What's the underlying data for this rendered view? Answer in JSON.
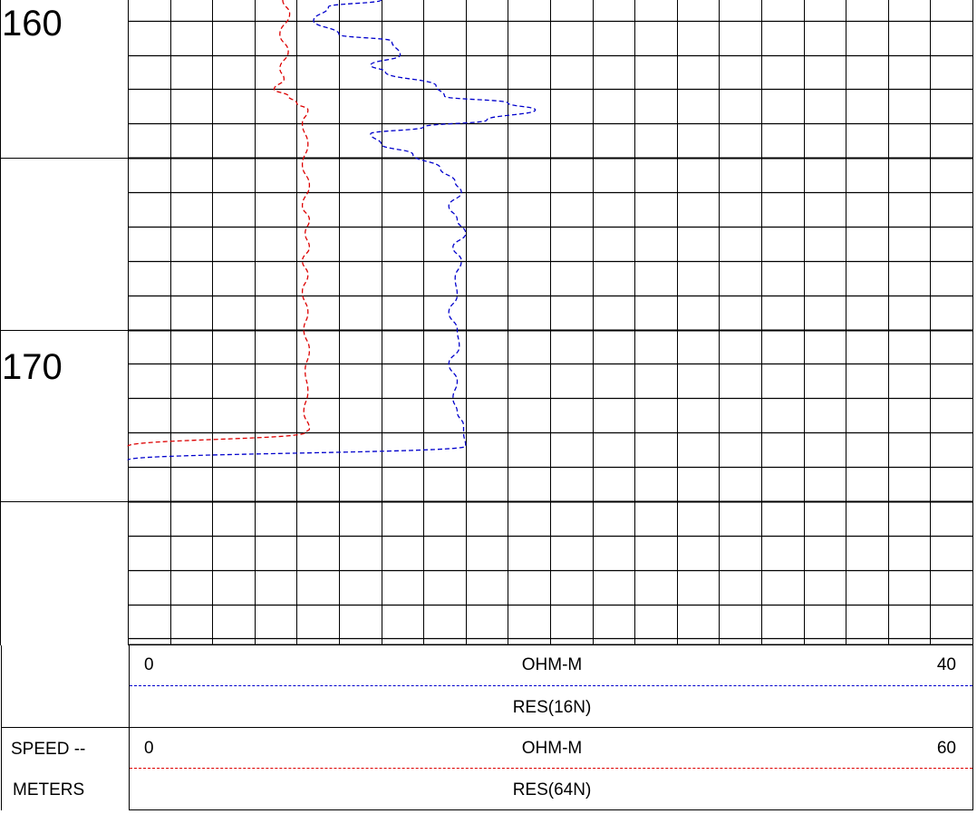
{
  "depth_track": {
    "labels": [
      "160",
      "170"
    ]
  },
  "scales": [
    {
      "min_label": "0",
      "unit": "OHM-M",
      "max_label": "40",
      "curve_name": "RES(16N)",
      "color": "#0000cc"
    },
    {
      "min_label": "0",
      "unit": "OHM-M",
      "max_label": "60",
      "curve_name": "RES(64N)",
      "color": "#dd0000"
    }
  ],
  "left_labels": {
    "speed": "SPEED --",
    "meters": "METERS"
  },
  "chart_data": {
    "type": "line",
    "title": "",
    "ylabel": "METERS",
    "y_reversed": true,
    "ylim": [
      155.4,
      174.2
    ],
    "grid": true,
    "series": [
      {
        "name": "RES(16N)",
        "unit": "OHM-M",
        "xlim": [
          0,
          40
        ],
        "color": "#0000cc",
        "style": "dashed",
        "points": [
          [
            12.0,
            155.4
          ],
          [
            9.5,
            155.6
          ],
          [
            8.8,
            156.0
          ],
          [
            10.0,
            156.4
          ],
          [
            12.5,
            156.6
          ],
          [
            12.9,
            157.0
          ],
          [
            11.5,
            157.3
          ],
          [
            12.2,
            157.5
          ],
          [
            14.6,
            157.9
          ],
          [
            15.0,
            158.2
          ],
          [
            18.0,
            158.4
          ],
          [
            19.3,
            158.6
          ],
          [
            17.0,
            158.9
          ],
          [
            14.0,
            159.1
          ],
          [
            11.5,
            159.3
          ],
          [
            12.0,
            159.6
          ],
          [
            13.5,
            159.9
          ],
          [
            14.8,
            160.3
          ],
          [
            15.5,
            160.7
          ],
          [
            15.8,
            161.0
          ],
          [
            15.2,
            161.4
          ],
          [
            15.6,
            161.8
          ],
          [
            16.0,
            162.2
          ],
          [
            15.4,
            162.6
          ],
          [
            15.8,
            163.0
          ],
          [
            15.5,
            163.5
          ],
          [
            15.6,
            164.0
          ],
          [
            15.2,
            164.5
          ],
          [
            15.6,
            165.0
          ],
          [
            15.7,
            165.5
          ],
          [
            15.2,
            166.0
          ],
          [
            15.6,
            166.5
          ],
          [
            15.4,
            167.0
          ],
          [
            15.6,
            167.4
          ],
          [
            15.9,
            167.8
          ],
          [
            15.9,
            168.0
          ],
          [
            16.0,
            168.4
          ],
          [
            0,
            168.8
          ]
        ]
      },
      {
        "name": "RES(64N)",
        "unit": "OHM-M",
        "xlim": [
          0,
          60
        ],
        "color": "#dd0000",
        "style": "dashed",
        "points": [
          [
            11.0,
            155.4
          ],
          [
            11.5,
            155.8
          ],
          [
            10.8,
            156.4
          ],
          [
            11.4,
            156.9
          ],
          [
            10.8,
            157.4
          ],
          [
            11.1,
            157.7
          ],
          [
            10.4,
            158.0
          ],
          [
            11.4,
            158.2
          ],
          [
            12.0,
            158.4
          ],
          [
            12.8,
            158.6
          ],
          [
            12.4,
            159.0
          ],
          [
            12.8,
            159.6
          ],
          [
            12.4,
            160.2
          ],
          [
            12.9,
            160.8
          ],
          [
            12.4,
            161.4
          ],
          [
            12.9,
            161.8
          ],
          [
            12.6,
            162.2
          ],
          [
            12.9,
            162.6
          ],
          [
            12.4,
            163.0
          ],
          [
            12.8,
            163.4
          ],
          [
            12.4,
            163.9
          ],
          [
            12.8,
            164.5
          ],
          [
            12.5,
            165.0
          ],
          [
            12.9,
            165.6
          ],
          [
            12.6,
            166.2
          ],
          [
            12.8,
            166.8
          ],
          [
            12.5,
            167.4
          ],
          [
            12.9,
            167.9
          ],
          [
            12.6,
            168.0
          ],
          [
            0,
            168.4
          ]
        ]
      }
    ]
  }
}
